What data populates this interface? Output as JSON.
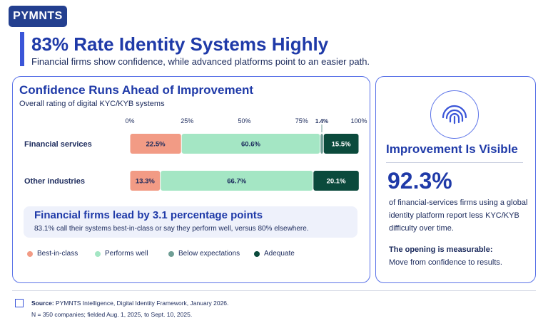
{
  "brand": {
    "logo_text": "PYMNTS"
  },
  "header": {
    "title": "83% Rate Identity Systems Highly",
    "subtitle": "Financial firms show confidence, while advanced platforms point to an easier path."
  },
  "left_card": {
    "callout_title": "Financial firms lead by 3.1 percentage points",
    "callout_text": "83.1% call their systems best-in-class or say they perform well, versus 80% elsewhere."
  },
  "right_card": {
    "title": "Improvement Is Visible",
    "stat": "92.3%",
    "description": "of financial-services firms using a global identity platform report less KYC/KYB difficulty over time.",
    "bold_line": "The opening is measurable:",
    "text_line": "Move from confidence to results.",
    "icon": "fingerprint-icon"
  },
  "footer": {
    "source_label": "Source:",
    "source_text": "PYMNTS Intelligence, Digital Identity Framework, January 2026.",
    "note": "N = 350 companies; fielded Aug. 1, 2025, to Sept. 10, 2025."
  },
  "colors": {
    "best_in_class": "#f29b85",
    "performs_well": "#a4e6c4",
    "below_expectations": "#6f9e95",
    "adequate": "#0b4a3c",
    "accent": "#1f3aa8"
  },
  "chart_data": {
    "type": "bar",
    "orientation": "horizontal",
    "stacked": true,
    "title": "Confidence Runs Ahead of Improvement",
    "subtitle": "Overall rating of digital KYC/KYB systems",
    "xlim": [
      0,
      100
    ],
    "x_ticks": [
      "0%",
      "25%",
      "50%",
      "75%",
      "100%"
    ],
    "categories": [
      "Financial services",
      "Other industries"
    ],
    "series": [
      {
        "name": "Best-in-class",
        "values": [
          22.5,
          13.3
        ],
        "labels": [
          "22.5%",
          "13.3%"
        ]
      },
      {
        "name": "Performs well",
        "values": [
          60.6,
          66.7
        ],
        "labels": [
          "60.6%",
          "66.7%"
        ]
      },
      {
        "name": "Below expectations",
        "values": [
          1.4,
          0.0
        ],
        "labels": [
          "1.4%",
          ""
        ]
      },
      {
        "name": "Adequate",
        "values": [
          15.5,
          20.1
        ],
        "labels": [
          "15.5%",
          "20.1%"
        ]
      }
    ],
    "legend_position": "bottom"
  }
}
